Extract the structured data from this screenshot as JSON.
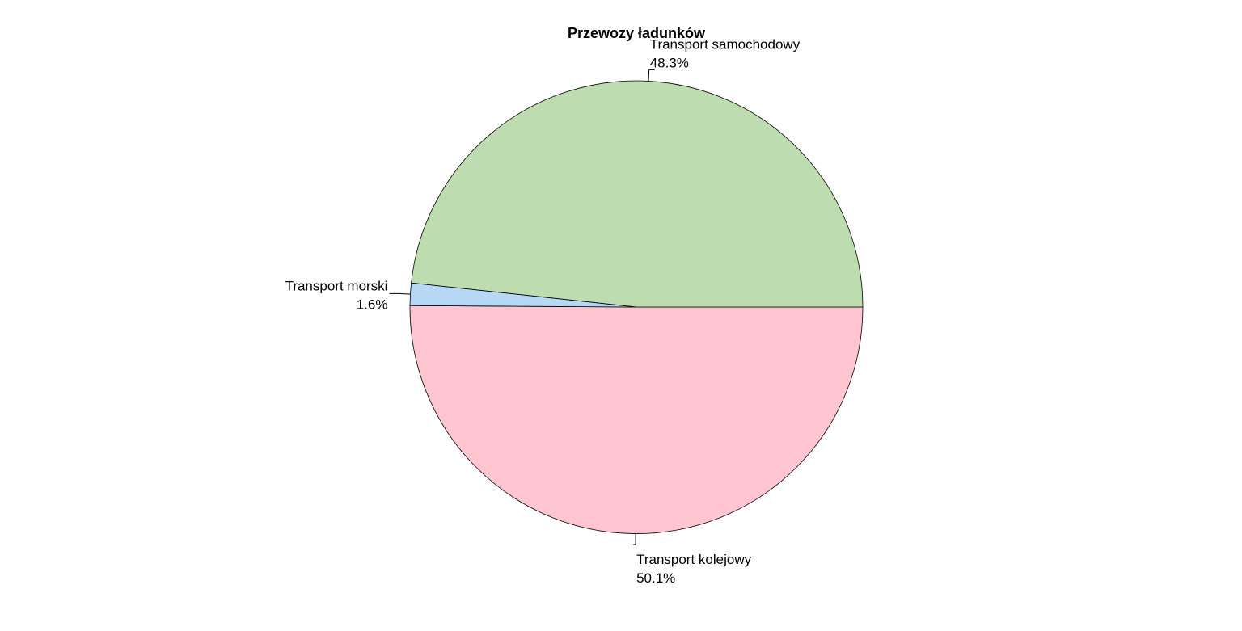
{
  "chart_data": {
    "type": "pie",
    "title": "Przewozy ładunków",
    "slices": [
      {
        "name": "Transport kolejowy",
        "value": 50.1,
        "label": "50.1%",
        "color": "#FFC5D0"
      },
      {
        "name": "Transport morski",
        "value": 1.6,
        "label": "1.6%",
        "color": "#B7D8F5"
      },
      {
        "name": "Transport samochodowy",
        "value": 48.3,
        "label": "48.3%",
        "color": "#BDDCB0"
      }
    ],
    "start": "right",
    "direction": "clockwise",
    "legend": "none"
  }
}
